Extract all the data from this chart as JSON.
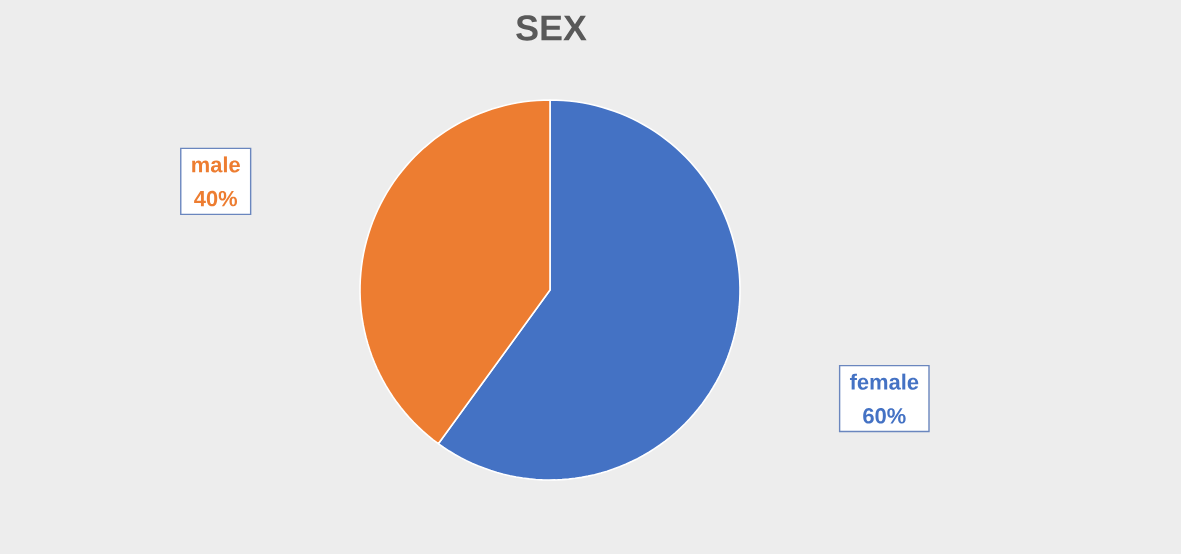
{
  "chart_data": {
    "type": "pie",
    "title": "SEX",
    "categories": [
      "female",
      "male"
    ],
    "values": [
      60,
      40
    ],
    "colors": [
      "#4472c4",
      "#ed7d31"
    ],
    "value_labels": [
      "60%",
      "40%"
    ]
  }
}
